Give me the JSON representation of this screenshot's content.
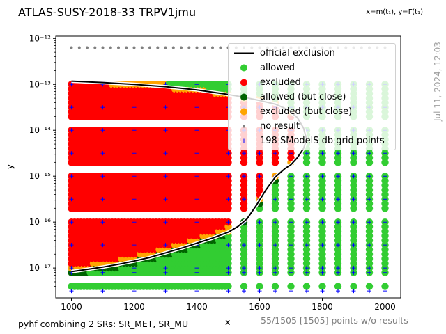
{
  "header": {
    "title": "ATLAS-SUSY-2018-33 TRPV1jmu",
    "axes_def": "x=m(t̃₁), y=Γ(t̃₁)"
  },
  "footer": {
    "combination": "pyhf combining 2 SRs: SR_MET, SR_MU",
    "points_info": "55/1505 [1505] points w/o results",
    "timestamp": "Jul 11, 2024, 12:03"
  },
  "chart_data": {
    "type": "scatter",
    "xlabel": "x",
    "ylabel": "y",
    "xlim": [
      950,
      2050
    ],
    "ylim_log10": [
      -17.65,
      -11.95
    ],
    "yscale": "log",
    "x_ticks": [
      "1000",
      "1200",
      "1400",
      "1600",
      "1800",
      "2000"
    ],
    "y_ticks": [
      "10⁻¹⁷",
      "10⁻¹⁶",
      "10⁻¹⁵",
      "10⁻¹⁴",
      "10⁻¹³",
      "10⁻¹²"
    ],
    "y_tick_values_log10": [
      -17,
      -16,
      -15,
      -14,
      -13,
      -12
    ],
    "legend_position": "top-right",
    "legend": [
      {
        "label": "official exclusion",
        "kind": "line",
        "color": "#000000"
      },
      {
        "label": "allowed",
        "kind": "dot",
        "color": "#32cd32"
      },
      {
        "label": "excluded",
        "kind": "dot",
        "color": "#ff0000"
      },
      {
        "label": "allowed (but close)",
        "kind": "dot",
        "color": "#006400"
      },
      {
        "label": "excluded (but close)",
        "kind": "dot",
        "color": "#ffa500"
      },
      {
        "label": "no result",
        "kind": "small-dot",
        "color": "#808080"
      },
      {
        "label": "198 SModelS db grid points",
        "kind": "plus",
        "color": "#0000ff"
      }
    ],
    "colors": {
      "allowed": "#32cd32",
      "excluded": "#ff0000",
      "allowed_close": "#006400",
      "excluded_close": "#ffa500",
      "no_result": "#808080",
      "grid_points": "#0000ff",
      "official": "#000000"
    },
    "official_exclusion": {
      "x": [
        1000,
        1050,
        1100,
        1150,
        1200,
        1250,
        1300,
        1350,
        1400,
        1450,
        1500,
        1530,
        1560,
        1590,
        1620,
        1650,
        1680,
        1700,
        1720,
        1740,
        1750,
        1740,
        1720,
        1690,
        1650,
        1600,
        1550,
        1500,
        1400,
        1300,
        1200,
        1100,
        1000
      ],
      "y_log10": [
        -17.08,
        -17.03,
        -16.98,
        -16.92,
        -16.85,
        -16.77,
        -16.67,
        -16.57,
        -16.46,
        -16.35,
        -16.22,
        -16.1,
        -15.93,
        -15.63,
        -15.3,
        -15.02,
        -14.84,
        -14.75,
        -14.6,
        -14.4,
        -14.2,
        -13.95,
        -13.72,
        -13.55,
        -13.43,
        -13.35,
        -13.28,
        -13.22,
        -13.12,
        -13.05,
        -13,
        -12.96,
        -12.93
      ]
    },
    "scan_rules": {
      "x_dense": [
        1000,
        1010,
        1020,
        1030,
        1040,
        1050,
        1060,
        1070,
        1080,
        1090,
        1100,
        1110,
        1120,
        1130,
        1140,
        1150,
        1160,
        1170,
        1180,
        1190,
        1200,
        1210,
        1220,
        1230,
        1240,
        1250,
        1260,
        1270,
        1280,
        1290,
        1300,
        1310,
        1320,
        1330,
        1340,
        1350,
        1360,
        1370,
        1380,
        1390,
        1400,
        1410,
        1420,
        1430,
        1440,
        1450,
        1460,
        1470,
        1480,
        1490,
        1500
      ],
      "x_sparse": [
        1550,
        1600,
        1650,
        1700,
        1750,
        1800,
        1850,
        1900,
        1950,
        2000
      ],
      "y_log10_rows": [
        -17.4,
        -17.1,
        -17,
        -16.9,
        -16.8,
        -16.7,
        -16.6,
        -16.5,
        -16.4,
        -16.3,
        -16.2,
        -16.1,
        -16,
        -15.7,
        -15.6,
        -15.5,
        -15.4,
        -15.3,
        -15.2,
        -15.1,
        -15,
        -14.7,
        -14.6,
        -14.5,
        -14.4,
        -14.3,
        -14.2,
        -14.1,
        -14,
        -13.7,
        -13.6,
        -13.5,
        -13.4,
        -13.3,
        -13.2,
        -13.1,
        -13
      ],
      "no_result_y_log10": -12.2,
      "sparse_excluded_below_x": 1700
    },
    "grid_points": {
      "x": [
        1000,
        1100,
        1200,
        1300,
        1400,
        1500,
        1600,
        1700,
        1800,
        1900,
        2000
      ],
      "y_log10": [
        -17.5,
        -17.1,
        -17,
        -16.5,
        -16,
        -15.5,
        -15,
        -14.5,
        -14,
        -13.5,
        -13
      ],
      "extra_x": [
        1550,
        1650,
        1750,
        1850,
        1950
      ]
    }
  }
}
